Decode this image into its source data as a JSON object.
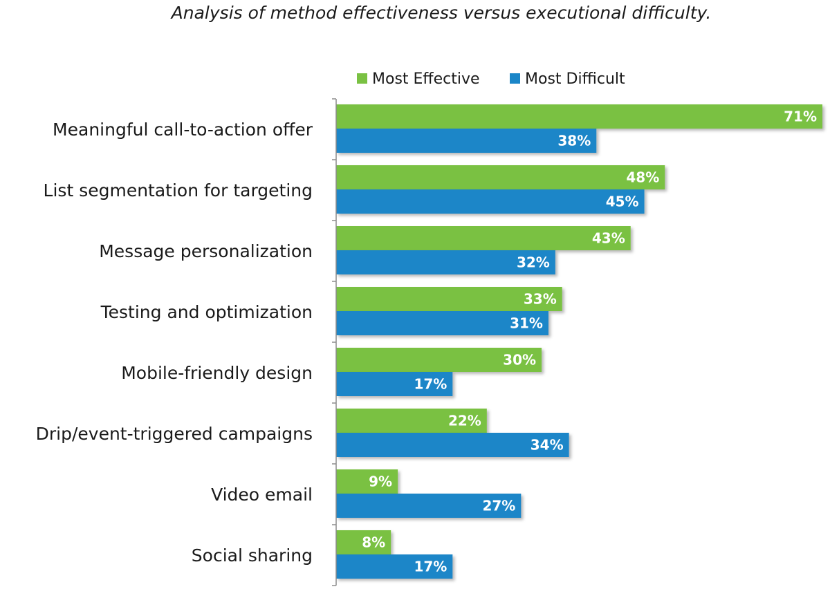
{
  "chart_data": {
    "type": "bar",
    "orientation": "horizontal",
    "title": "Analysis of method effectiveness versus executional difficulty.",
    "categories": [
      "Meaningful call-to-action offer",
      "List segmentation for targeting",
      "Message personalization",
      "Testing and optimization",
      "Mobile-friendly design",
      "Drip/event-triggered campaigns",
      "Video email",
      "Social sharing"
    ],
    "series": [
      {
        "name": "Most Effective",
        "color": "#7ac143",
        "values": [
          71,
          48,
          43,
          33,
          30,
          22,
          9,
          8
        ]
      },
      {
        "name": "Most Difficult",
        "color": "#1a86c8",
        "values": [
          38,
          45,
          32,
          31,
          17,
          34,
          27,
          17
        ]
      }
    ],
    "value_suffix": "%",
    "xlim": [
      0,
      71
    ],
    "legend": "top-center",
    "grid": false
  }
}
